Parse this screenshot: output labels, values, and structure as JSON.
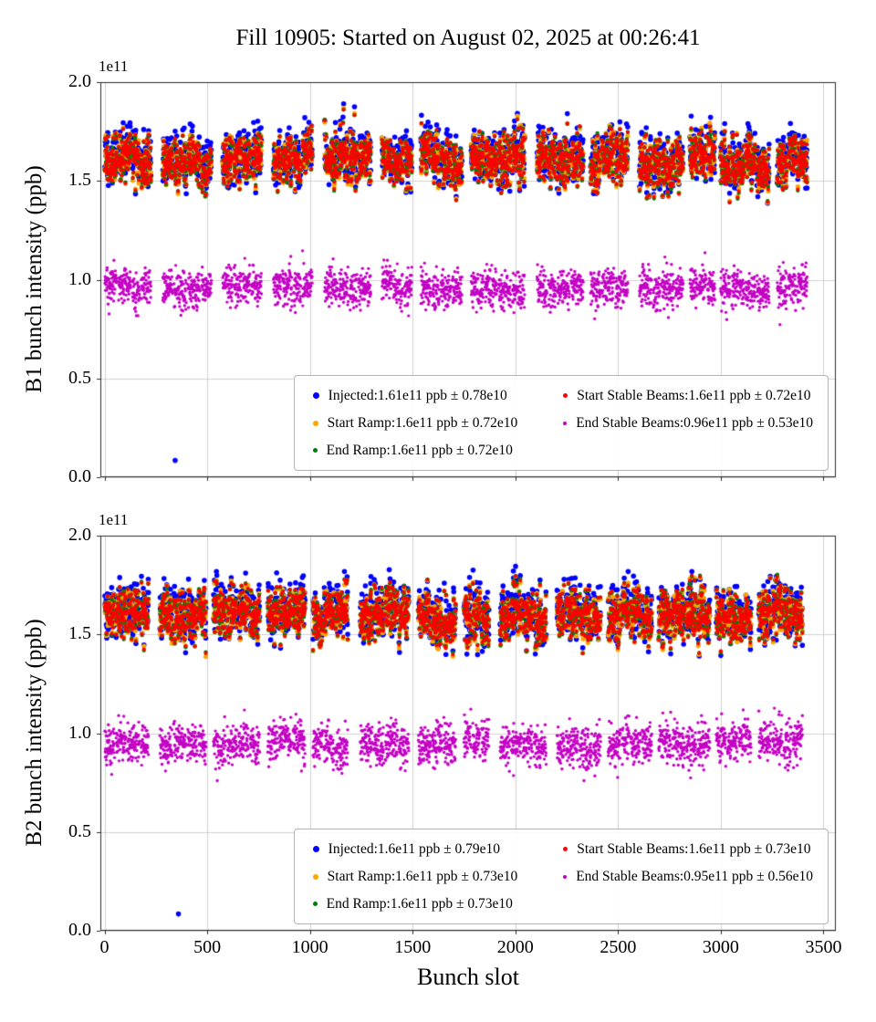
{
  "title": "Fill 10905: Started on August 02, 2025 at 00:26:41",
  "xlabel": "Bunch slot",
  "chart_data": [
    {
      "type": "scatter",
      "beam": "B1",
      "ylabel": "B1 bunch intensity (ppb)",
      "y_offset_text": "1e11",
      "xlim": [
        -20,
        3560
      ],
      "ylim": [
        0.0,
        2.0
      ],
      "x_ticks": [
        0,
        500,
        1000,
        1500,
        2000,
        2500,
        3000,
        3500
      ],
      "x_tick_labels": [
        "0",
        "500",
        "1000",
        "1500",
        "2000",
        "2500",
        "3000",
        "3500"
      ],
      "y_ticks": [
        0.0,
        0.5,
        1.0,
        1.5,
        2.0
      ],
      "y_tick_labels": [
        "0.0",
        "0.5",
        "1.0",
        "1.5",
        "2.0"
      ],
      "show_x_tick_labels": false,
      "grid": true,
      "units": "1e11 ppb",
      "seed": 802025,
      "legend": {
        "columns": 2,
        "entries": [
          {
            "label": "Injected:1.61e11 ppb ± 0.78e10",
            "color": "#0000ff"
          },
          {
            "label": "Start Ramp:1.6e11 ppb ± 0.72e10",
            "color": "#ffa500"
          },
          {
            "label": "End Ramp:1.6e11 ppb ± 0.72e10",
            "color": "#008000"
          },
          {
            "label": "Start Stable Beams:1.6e11 ppb ± 0.72e10",
            "color": "#ff0000"
          },
          {
            "label": "End Stable Beams:0.96e11 ppb ± 0.53e10",
            "color": "#c400c4"
          }
        ]
      },
      "series": [
        {
          "name": "Injected",
          "color": "#0000ff",
          "mean": 1.61,
          "std": 0.078,
          "marker_r": 2.8
        },
        {
          "name": "Start Ramp",
          "color": "#ffa500",
          "mean": 1.6,
          "std": 0.072,
          "marker_r": 2.6
        },
        {
          "name": "End Ramp",
          "color": "#008000",
          "mean": 1.6,
          "std": 0.072,
          "marker_r": 2.2
        },
        {
          "name": "Start Stable Beams",
          "color": "#ff0000",
          "mean": 1.6,
          "std": 0.072,
          "marker_r": 2.0
        },
        {
          "name": "End Stable Beams",
          "color": "#c400c4",
          "mean": 0.96,
          "std": 0.053,
          "marker_r": 1.7
        }
      ],
      "outlier": {
        "x": 344,
        "y": 0.085,
        "color": "#0000ff"
      }
    },
    {
      "type": "scatter",
      "beam": "B2",
      "ylabel": "B2 bunch intensity (ppb)",
      "y_offset_text": "1e11",
      "xlim": [
        -20,
        3560
      ],
      "ylim": [
        0.0,
        2.0
      ],
      "x_ticks": [
        0,
        500,
        1000,
        1500,
        2000,
        2500,
        3000,
        3500
      ],
      "x_tick_labels": [
        "0",
        "500",
        "1000",
        "1500",
        "2000",
        "2500",
        "3000",
        "3500"
      ],
      "y_ticks": [
        0.0,
        0.5,
        1.0,
        1.5,
        2.0
      ],
      "y_tick_labels": [
        "0.0",
        "0.5",
        "1.0",
        "1.5",
        "2.0"
      ],
      "show_x_tick_labels": true,
      "grid": true,
      "units": "1e11 ppb",
      "seed": 10905,
      "legend": {
        "columns": 2,
        "entries": [
          {
            "label": "Injected:1.6e11 ppb ± 0.79e10",
            "color": "#0000ff"
          },
          {
            "label": "Start Ramp:1.6e11 ppb ± 0.73e10",
            "color": "#ffa500"
          },
          {
            "label": "End Ramp:1.6e11 ppb ± 0.73e10",
            "color": "#008000"
          },
          {
            "label": "Start Stable Beams:1.6e11 ppb ± 0.73e10",
            "color": "#ff0000"
          },
          {
            "label": "End Stable Beams:0.95e11 ppb ± 0.56e10",
            "color": "#c400c4"
          }
        ]
      },
      "series": [
        {
          "name": "Injected",
          "color": "#0000ff",
          "mean": 1.6,
          "std": 0.079,
          "marker_r": 2.8
        },
        {
          "name": "Start Ramp",
          "color": "#ffa500",
          "mean": 1.6,
          "std": 0.073,
          "marker_r": 2.6
        },
        {
          "name": "End Ramp",
          "color": "#008000",
          "mean": 1.6,
          "std": 0.073,
          "marker_r": 2.2
        },
        {
          "name": "Start Stable Beams",
          "color": "#ff0000",
          "mean": 1.6,
          "std": 0.073,
          "marker_r": 2.0
        },
        {
          "name": "End Stable Beams",
          "color": "#c400c4",
          "mean": 0.95,
          "std": 0.056,
          "marker_r": 1.7
        }
      ],
      "outlier": {
        "x": 360,
        "y": 0.085,
        "color": "#0000ff"
      }
    }
  ]
}
